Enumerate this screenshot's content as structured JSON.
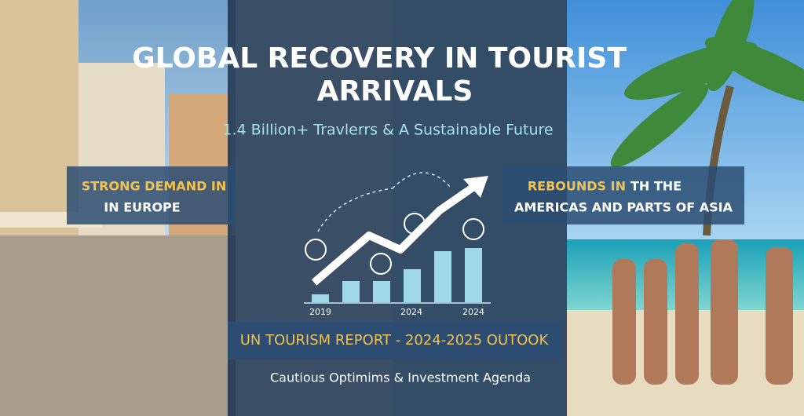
{
  "header": {
    "title_lines": [
      "GLOBAL RECOVERY IN TOURIST",
      "ARRIVALS"
    ],
    "subtitle": "1.4 Billion+ Travlerrs & A Sustainable Future"
  },
  "left_panel": {
    "highlight": "STRONG DEMAND IN",
    "text": "IN EUROPE"
  },
  "right_panel": {
    "highlight": "REBOUNDS IN",
    "text_line1": "TH THE",
    "text_line2": "AMERICAS AND PARTS OF ASIA"
  },
  "chart_icon": {
    "axis_labels": [
      "2019",
      "2024",
      "2024"
    ]
  },
  "banner": {
    "text": "UN TOURISM REPORT - 2024-2025 OUTOOK"
  },
  "footer": {
    "text": "Cautious Optimims & Investment Agenda"
  }
}
